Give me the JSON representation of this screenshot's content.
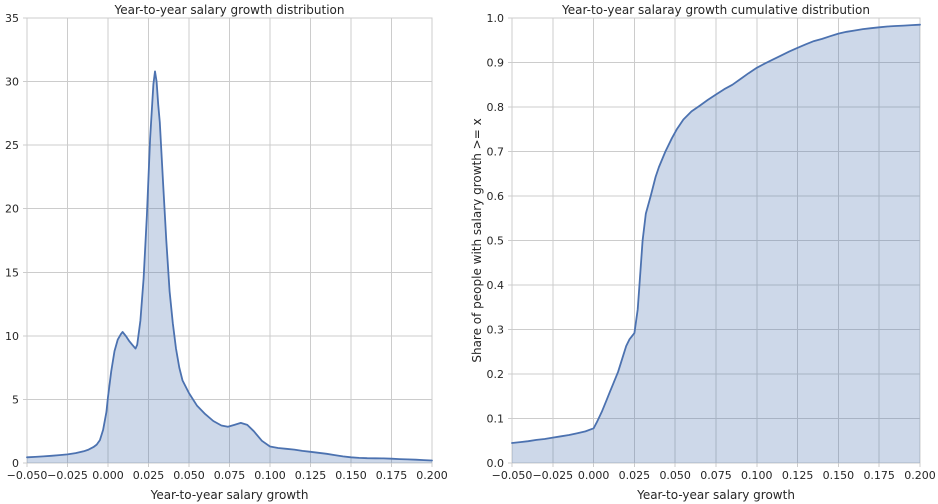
{
  "colors": {
    "line": "#4c72b0",
    "fill": "rgba(76,114,176,0.28)",
    "grid": "#cccccc",
    "text": "#262626",
    "background": "#ffffff"
  },
  "chart_data": [
    {
      "type": "area",
      "title": "Year-to-year salary growth distribution",
      "xlabel": "Year-to-year salary growth",
      "ylabel": "",
      "grid": true,
      "legend": null,
      "xlim": [
        -0.05,
        0.2
      ],
      "ylim": [
        0,
        35
      ],
      "x_tick_values": [
        -0.05,
        -0.025,
        0.0,
        0.025,
        0.05,
        0.075,
        0.1,
        0.125,
        0.15,
        0.175,
        0.2
      ],
      "x_tick_labels": [
        "−0.050",
        "−0.025",
        "0.000",
        "0.025",
        "0.050",
        "0.075",
        "0.100",
        "0.125",
        "0.150",
        "0.175",
        "0.200"
      ],
      "y_tick_values": [
        0,
        5,
        10,
        15,
        20,
        25,
        30,
        35
      ],
      "y_tick_labels": [
        "0",
        "5",
        "10",
        "15",
        "20",
        "25",
        "30",
        "35"
      ],
      "peak": {
        "x": 0.029,
        "value": 30.8
      },
      "points": [
        [
          -0.05,
          0.45
        ],
        [
          -0.045,
          0.48
        ],
        [
          -0.04,
          0.52
        ],
        [
          -0.035,
          0.57
        ],
        [
          -0.03,
          0.62
        ],
        [
          -0.025,
          0.68
        ],
        [
          -0.02,
          0.78
        ],
        [
          -0.015,
          0.92
        ],
        [
          -0.012,
          1.05
        ],
        [
          -0.009,
          1.25
        ],
        [
          -0.007,
          1.45
        ],
        [
          -0.005,
          1.8
        ],
        [
          -0.003,
          2.6
        ],
        [
          -0.001,
          4.0
        ],
        [
          0.0,
          5.2
        ],
        [
          0.002,
          7.2
        ],
        [
          0.004,
          8.8
        ],
        [
          0.006,
          9.7
        ],
        [
          0.008,
          10.15
        ],
        [
          0.009,
          10.3
        ],
        [
          0.011,
          10.0
        ],
        [
          0.013,
          9.6
        ],
        [
          0.015,
          9.3
        ],
        [
          0.017,
          9.0
        ],
        [
          0.018,
          9.3
        ],
        [
          0.02,
          11.2
        ],
        [
          0.022,
          14.5
        ],
        [
          0.024,
          19.5
        ],
        [
          0.026,
          25.5
        ],
        [
          0.028,
          29.8
        ],
        [
          0.029,
          30.8
        ],
        [
          0.03,
          30.0
        ],
        [
          0.031,
          28.2
        ],
        [
          0.032,
          26.8
        ],
        [
          0.034,
          22.0
        ],
        [
          0.036,
          17.5
        ],
        [
          0.038,
          13.5
        ],
        [
          0.04,
          11.0
        ],
        [
          0.042,
          9.0
        ],
        [
          0.044,
          7.5
        ],
        [
          0.046,
          6.5
        ],
        [
          0.05,
          5.5
        ],
        [
          0.055,
          4.5
        ],
        [
          0.06,
          3.85
        ],
        [
          0.065,
          3.3
        ],
        [
          0.07,
          2.95
        ],
        [
          0.074,
          2.85
        ],
        [
          0.078,
          3.0
        ],
        [
          0.082,
          3.15
        ],
        [
          0.086,
          3.0
        ],
        [
          0.09,
          2.5
        ],
        [
          0.095,
          1.75
        ],
        [
          0.1,
          1.3
        ],
        [
          0.105,
          1.18
        ],
        [
          0.11,
          1.12
        ],
        [
          0.115,
          1.05
        ],
        [
          0.12,
          0.95
        ],
        [
          0.125,
          0.88
        ],
        [
          0.13,
          0.8
        ],
        [
          0.135,
          0.72
        ],
        [
          0.14,
          0.62
        ],
        [
          0.145,
          0.52
        ],
        [
          0.15,
          0.45
        ],
        [
          0.155,
          0.4
        ],
        [
          0.16,
          0.38
        ],
        [
          0.165,
          0.37
        ],
        [
          0.17,
          0.36
        ],
        [
          0.175,
          0.34
        ],
        [
          0.18,
          0.31
        ],
        [
          0.185,
          0.28
        ],
        [
          0.19,
          0.26
        ],
        [
          0.195,
          0.23
        ],
        [
          0.2,
          0.2
        ]
      ]
    },
    {
      "type": "area",
      "title": "Year-to-year salaray growth cumulative distribution",
      "xlabel": "Year-to-year salary growth",
      "ylabel": "Share of people with salary growth >= x",
      "grid": true,
      "legend": null,
      "xlim": [
        -0.05,
        0.2
      ],
      "ylim": [
        0,
        1.0
      ],
      "x_tick_values": [
        -0.05,
        -0.025,
        0.0,
        0.025,
        0.05,
        0.075,
        0.1,
        0.125,
        0.15,
        0.175,
        0.2
      ],
      "x_tick_labels": [
        "−0.050",
        "−0.025",
        "0.000",
        "0.025",
        "0.050",
        "0.075",
        "0.100",
        "0.125",
        "0.150",
        "0.175",
        "0.200"
      ],
      "y_tick_values": [
        0.0,
        0.1,
        0.2,
        0.3,
        0.4,
        0.5,
        0.6,
        0.7,
        0.8,
        0.9,
        1.0
      ],
      "y_tick_labels": [
        "0.0",
        "0.1",
        "0.2",
        "0.3",
        "0.4",
        "0.5",
        "0.6",
        "0.7",
        "0.8",
        "0.9",
        "1.0"
      ],
      "points": [
        [
          -0.05,
          0.045
        ],
        [
          -0.045,
          0.047
        ],
        [
          -0.04,
          0.049
        ],
        [
          -0.035,
          0.052
        ],
        [
          -0.03,
          0.054
        ],
        [
          -0.025,
          0.057
        ],
        [
          -0.02,
          0.06
        ],
        [
          -0.015,
          0.063
        ],
        [
          -0.01,
          0.067
        ],
        [
          -0.005,
          0.071
        ],
        [
          0.0,
          0.078
        ],
        [
          0.002,
          0.092
        ],
        [
          0.005,
          0.115
        ],
        [
          0.008,
          0.142
        ],
        [
          0.01,
          0.16
        ],
        [
          0.012,
          0.178
        ],
        [
          0.015,
          0.205
        ],
        [
          0.018,
          0.24
        ],
        [
          0.02,
          0.263
        ],
        [
          0.022,
          0.278
        ],
        [
          0.025,
          0.292
        ],
        [
          0.027,
          0.345
        ],
        [
          0.028,
          0.395
        ],
        [
          0.03,
          0.5
        ],
        [
          0.032,
          0.56
        ],
        [
          0.035,
          0.6
        ],
        [
          0.038,
          0.643
        ],
        [
          0.04,
          0.665
        ],
        [
          0.044,
          0.7
        ],
        [
          0.048,
          0.73
        ],
        [
          0.051,
          0.75
        ],
        [
          0.055,
          0.772
        ],
        [
          0.06,
          0.79
        ],
        [
          0.065,
          0.803
        ],
        [
          0.07,
          0.816
        ],
        [
          0.075,
          0.828
        ],
        [
          0.08,
          0.84
        ],
        [
          0.085,
          0.85
        ],
        [
          0.09,
          0.863
        ],
        [
          0.095,
          0.876
        ],
        [
          0.1,
          0.888
        ],
        [
          0.105,
          0.898
        ],
        [
          0.11,
          0.907
        ],
        [
          0.115,
          0.916
        ],
        [
          0.12,
          0.925
        ],
        [
          0.125,
          0.933
        ],
        [
          0.13,
          0.941
        ],
        [
          0.135,
          0.948
        ],
        [
          0.14,
          0.953
        ],
        [
          0.145,
          0.959
        ],
        [
          0.15,
          0.965
        ],
        [
          0.155,
          0.969
        ],
        [
          0.16,
          0.972
        ],
        [
          0.165,
          0.975
        ],
        [
          0.17,
          0.977
        ],
        [
          0.175,
          0.979
        ],
        [
          0.18,
          0.981
        ],
        [
          0.185,
          0.982
        ],
        [
          0.19,
          0.983
        ],
        [
          0.195,
          0.984
        ],
        [
          0.2,
          0.985
        ]
      ]
    }
  ]
}
